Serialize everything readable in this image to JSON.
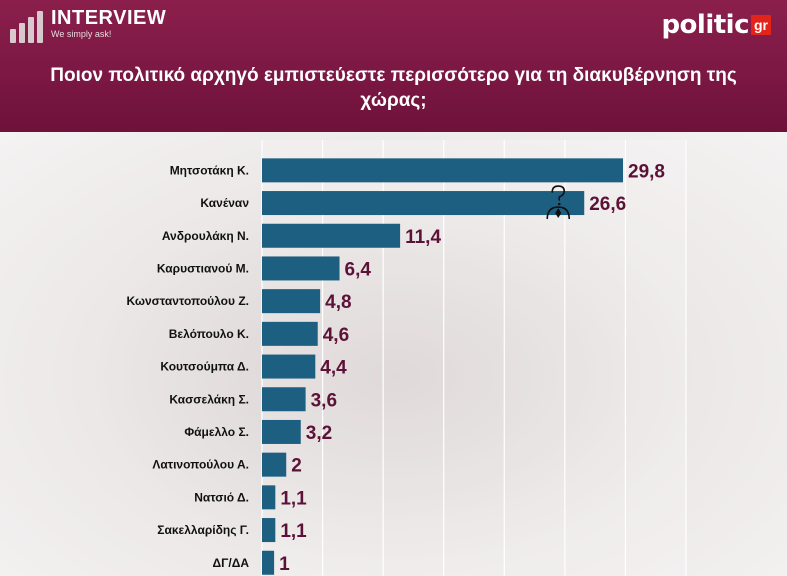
{
  "brand": {
    "left_title": "INTERVIEW",
    "left_tagline": "We simply ask!",
    "right_name": "politic",
    "right_suffix": "gr"
  },
  "chart_data": {
    "type": "bar",
    "orientation": "horizontal",
    "title": "Ποιον πολιτικό αρχηγό εμπιστεύεστε περισσότερο για τη διακυβέρνηση της χώρας;",
    "categories": [
      "Μητσοτάκη Κ.",
      "Κανέναν",
      "Ανδρουλάκη Ν.",
      "Καρυστιανού Μ.",
      "Κωνσταντοπούλου Ζ.",
      "Βελόπουλο Κ.",
      "Κουτσούμπα Δ.",
      "Κασσελάκη Σ.",
      "Φάμελλο Σ.",
      "Λατινοπούλου Α.",
      "Νατσιό Δ.",
      "Σακελλαρίδης Γ.",
      "ΔΓ/ΔΑ"
    ],
    "values": [
      29.8,
      26.6,
      11.4,
      6.4,
      4.8,
      4.6,
      4.4,
      3.6,
      3.2,
      2,
      1.1,
      1.1,
      1
    ],
    "value_labels": [
      "29,8",
      "26,6",
      "11,4",
      "6,4",
      "4,8",
      "4,6",
      "4,4",
      "3,6",
      "3,2",
      "2",
      "1,1",
      "1,1",
      "1"
    ],
    "xlim": [
      0,
      35
    ],
    "grid": true,
    "colors": {
      "bar": "#1d5f80",
      "label": "#5b1236",
      "category": "#111111",
      "grid": "#ffffff"
    },
    "annotation_icon": "question-person-icon"
  }
}
